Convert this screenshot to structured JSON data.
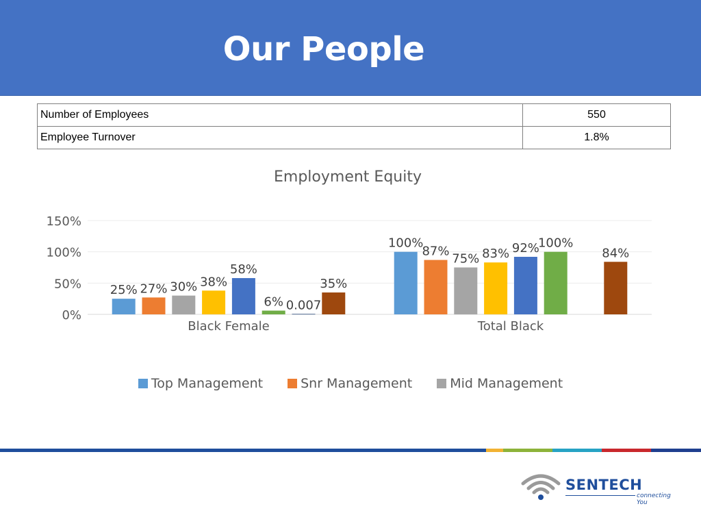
{
  "header": {
    "title": "Our People"
  },
  "stats": [
    {
      "label": "Number of Employees",
      "value": "550"
    },
    {
      "label": "Employee Turnover",
      "value": "1.8%"
    }
  ],
  "chart_data": {
    "type": "bar",
    "title": "Employment Equity",
    "xlabel": "",
    "ylabel": "",
    "ylim": [
      0,
      1.5
    ],
    "yticks": [
      "0%",
      "50%",
      "100%",
      "150%"
    ],
    "grid": true,
    "legend_position": "bottom",
    "categories": [
      "Black Female",
      "Total Black"
    ],
    "series": [
      {
        "name": "Top Management",
        "color": "#5b9bd5",
        "values": [
          0.25,
          1.0
        ],
        "labels": [
          "25%",
          "100%"
        ]
      },
      {
        "name": "Snr Management",
        "color": "#ed7d31",
        "values": [
          0.27,
          0.87
        ],
        "labels": [
          "27%",
          "87%"
        ]
      },
      {
        "name": "Mid Management",
        "color": "#a5a5a5",
        "values": [
          0.3,
          0.75
        ],
        "labels": [
          "30%",
          "75%"
        ]
      },
      {
        "name": "",
        "color": "#ffc000",
        "values": [
          0.38,
          0.83
        ],
        "labels": [
          "38%",
          "83%"
        ]
      },
      {
        "name": "",
        "color": "#4472c4",
        "values": [
          0.58,
          0.92
        ],
        "labels": [
          "58%",
          "92%"
        ]
      },
      {
        "name": "",
        "color": "#70ad47",
        "values": [
          0.06,
          1.0
        ],
        "labels": [
          "6%",
          "100%"
        ]
      },
      {
        "name": "",
        "color": "#264478",
        "values": [
          0.007,
          null
        ],
        "labels": [
          "0.007",
          ""
        ]
      },
      {
        "name": "",
        "color": "#9e480e",
        "values": [
          0.35,
          0.84
        ],
        "labels": [
          "35%",
          "84%"
        ]
      }
    ]
  },
  "footer": {
    "stripe_colors": [
      "#1f4e9c",
      "#f2b233",
      "#8db33a",
      "#27a3c4",
      "#c9282d",
      "#1f3f8f"
    ],
    "logo": {
      "name": "SENTECH",
      "tagline": "connecting You",
      "icon": "wifi-signal-icon"
    }
  }
}
